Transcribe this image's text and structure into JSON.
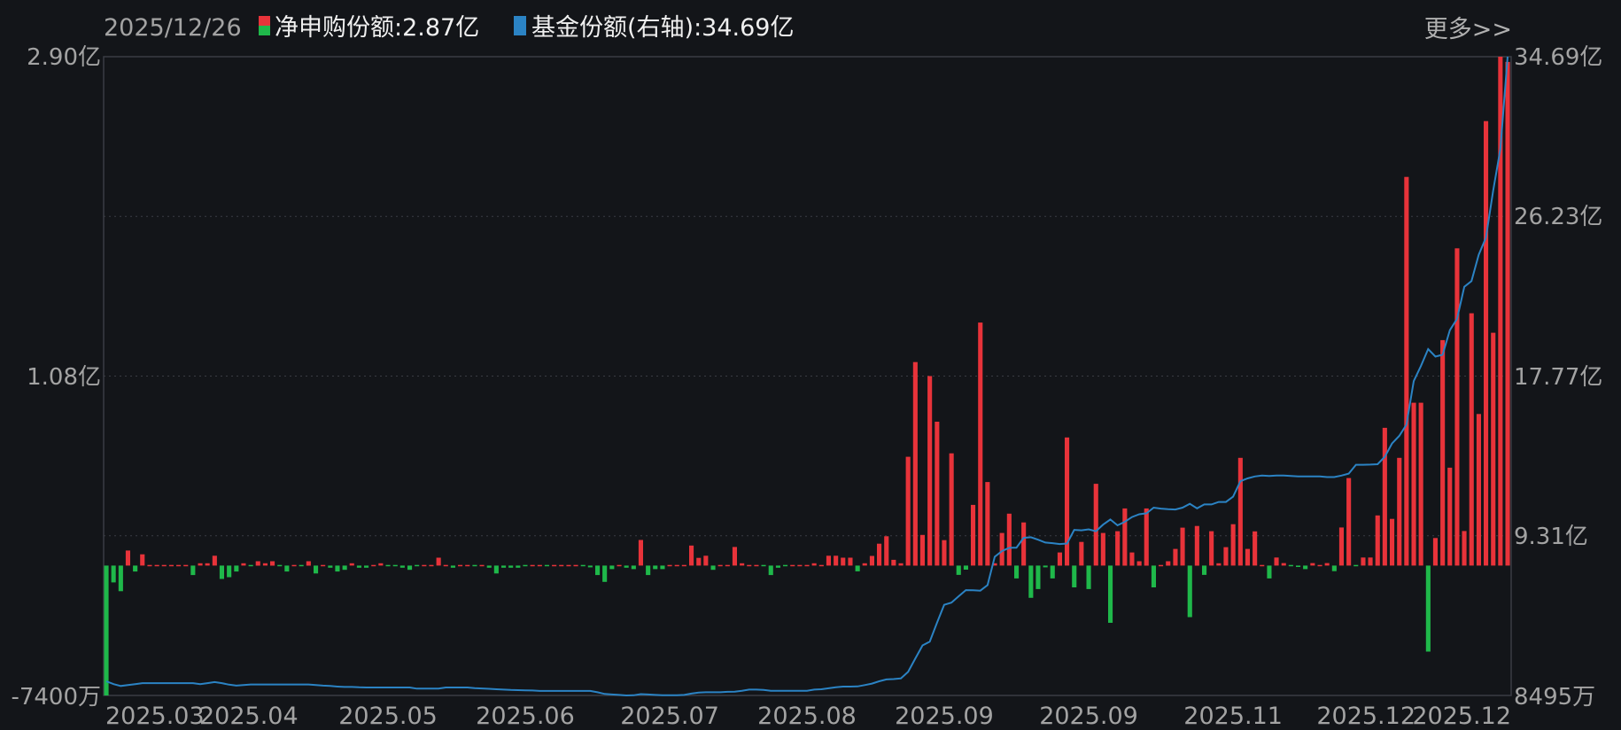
{
  "header": {
    "date": "2025/12/26",
    "legend": [
      {
        "label": "净申购份额:2.87亿",
        "colors": [
          "#e8333a",
          "#1fb84a"
        ],
        "icon": "red-green-square"
      },
      {
        "label": "基金份额(右轴):34.69亿",
        "colors": [
          "#2b83c4"
        ],
        "icon": "blue-square"
      }
    ],
    "more_link": "更多>>"
  },
  "chart_data": {
    "type": "bar+line",
    "x_tick_labels": [
      "2025.03",
      "2025.04",
      "2025.05",
      "2025.06",
      "2025.07",
      "2025.08",
      "2025.09",
      "2025.09",
      "2025.11",
      "2025.12",
      "2025.12"
    ],
    "left_axis": {
      "unit": "亿",
      "ylim": [
        -0.74,
        2.9
      ],
      "tick_labels": [
        "2.90亿",
        "1.08亿",
        "-7400万"
      ]
    },
    "right_axis": {
      "unit": "亿",
      "ylim": [
        0.8495,
        34.69
      ],
      "tick_labels": [
        "34.69亿",
        "26.23亿",
        "17.77亿",
        "9.31亿",
        "8495万"
      ]
    },
    "grid": "horizontal-dotted",
    "colors": {
      "positive": "#e8333a",
      "negative": "#1fb84a",
      "line": "#2b83c4",
      "background": "#131519"
    },
    "series": [
      {
        "name": "净申购份额",
        "axis": "left",
        "type": "bar",
        "values": [
          -0.74,
          -0.096,
          -0.146,
          0.086,
          -0.034,
          0.064,
          0.005,
          0.005,
          0.005,
          0.005,
          0.005,
          0.005,
          -0.054,
          0.013,
          0.013,
          0.056,
          -0.076,
          -0.066,
          -0.034,
          0.013,
          -0.005,
          0.025,
          0.013,
          0.025,
          -0.003,
          -0.034,
          0.004,
          -0.004,
          0.025,
          -0.045,
          0.003,
          -0.012,
          -0.034,
          -0.024,
          0.013,
          -0.012,
          -0.012,
          0.004,
          0.013,
          -0.003,
          -0.003,
          -0.012,
          -0.024,
          -0.003,
          0.003,
          0.003,
          0.045,
          0.003,
          -0.012,
          0.003,
          0.003,
          -0.003,
          0.003,
          -0.012,
          -0.045,
          -0.012,
          -0.012,
          -0.012,
          -0.003,
          0.003,
          0.003,
          -0.003,
          0.003,
          0.003,
          0.003,
          0.003,
          -0.003,
          -0.01,
          -0.054,
          -0.093,
          -0.02,
          0.003,
          -0.012,
          -0.02,
          0.146,
          -0.054,
          -0.02,
          -0.02,
          0.003,
          0.003,
          0.003,
          0.114,
          0.044,
          0.056,
          -0.024,
          0.003,
          0.003,
          0.106,
          0.013,
          0.003,
          0.003,
          -0.003,
          -0.054,
          -0.012,
          -0.003,
          0.003,
          0.003,
          0.003,
          0.013,
          0.003,
          0.056,
          0.056,
          0.045,
          0.045,
          -0.033,
          0.013,
          0.055,
          0.125,
          0.167,
          0.033,
          0.013,
          0.62,
          1.16,
          0.175,
          1.08,
          0.82,
          0.145,
          0.64,
          -0.053,
          -0.023,
          0.346,
          1.385,
          0.476,
          0.013,
          0.186,
          0.296,
          -0.073,
          0.246,
          -0.184,
          -0.134,
          -0.01,
          -0.073,
          0.075,
          0.73,
          -0.124,
          0.135,
          -0.134,
          0.466,
          0.186,
          -0.326,
          0.196,
          0.326,
          0.075,
          0.025,
          0.326,
          -0.124,
          0.003,
          0.025,
          0.095,
          0.216,
          -0.294,
          0.226,
          -0.053,
          0.196,
          0.013,
          0.105,
          0.236,
          0.614,
          0.095,
          0.195,
          0.006,
          -0.073,
          0.046,
          0.014,
          -0.004,
          -0.008,
          -0.02,
          0.014,
          0.006,
          0.014,
          -0.032,
          0.217,
          0.499,
          -0.002,
          0.046,
          0.046,
          0.286,
          0.785,
          0.266,
          0.614,
          2.215,
          0.928,
          0.928,
          -0.49,
          0.157,
          1.285,
          0.558,
          1.808,
          0.197,
          1.438,
          0.864,
          2.533,
          1.327,
          2.9,
          2.87
        ]
      },
      {
        "name": "基金份额",
        "axis": "right",
        "type": "line",
        "values": [
          1.6,
          1.45,
          1.35,
          1.4,
          1.45,
          1.5,
          1.5,
          1.5,
          1.5,
          1.5,
          1.5,
          1.5,
          1.5,
          1.45,
          1.5,
          1.56,
          1.5,
          1.42,
          1.37,
          1.4,
          1.43,
          1.43,
          1.43,
          1.43,
          1.43,
          1.43,
          1.43,
          1.43,
          1.43,
          1.4,
          1.37,
          1.35,
          1.32,
          1.3,
          1.3,
          1.28,
          1.27,
          1.27,
          1.27,
          1.27,
          1.27,
          1.27,
          1.27,
          1.21,
          1.21,
          1.21,
          1.21,
          1.27,
          1.27,
          1.27,
          1.27,
          1.24,
          1.22,
          1.2,
          1.18,
          1.16,
          1.14,
          1.13,
          1.12,
          1.11,
          1.09,
          1.09,
          1.09,
          1.09,
          1.09,
          1.09,
          1.09,
          1.09,
          1.02,
          0.93,
          0.9,
          0.88,
          0.85,
          0.86,
          0.92,
          0.9,
          0.88,
          0.86,
          0.86,
          0.86,
          0.88,
          0.95,
          1.0,
          1.02,
          1.02,
          1.02,
          1.04,
          1.05,
          1.1,
          1.16,
          1.16,
          1.14,
          1.1,
          1.1,
          1.1,
          1.1,
          1.1,
          1.1,
          1.16,
          1.18,
          1.23,
          1.28,
          1.32,
          1.32,
          1.33,
          1.4,
          1.48,
          1.6,
          1.7,
          1.72,
          1.75,
          2.1,
          2.8,
          3.5,
          3.7,
          4.7,
          5.65,
          5.77,
          6.1,
          6.43,
          6.42,
          6.4,
          6.7,
          8.2,
          8.5,
          8.67,
          8.68,
          9.2,
          9.23,
          9.1,
          8.95,
          8.92,
          8.87,
          8.9,
          9.62,
          9.6,
          9.65,
          9.55,
          9.9,
          10.17,
          9.86,
          10.05,
          10.3,
          10.45,
          10.5,
          10.8,
          10.75,
          10.72,
          10.7,
          10.8,
          11.0,
          10.76,
          10.97,
          10.97,
          11.1,
          11.1,
          11.38,
          12.2,
          12.35,
          12.45,
          12.5,
          12.48,
          12.5,
          12.5,
          12.48,
          12.45,
          12.45,
          12.45,
          12.45,
          12.42,
          12.42,
          12.5,
          12.6,
          13.07,
          13.07,
          13.08,
          13.1,
          13.5,
          14.2,
          14.6,
          15.2,
          17.5,
          18.3,
          19.2,
          18.8,
          18.9,
          20.2,
          20.8,
          22.5,
          22.8,
          24.2,
          25.1,
          27.6,
          29.8,
          34.69
        ]
      }
    ]
  }
}
